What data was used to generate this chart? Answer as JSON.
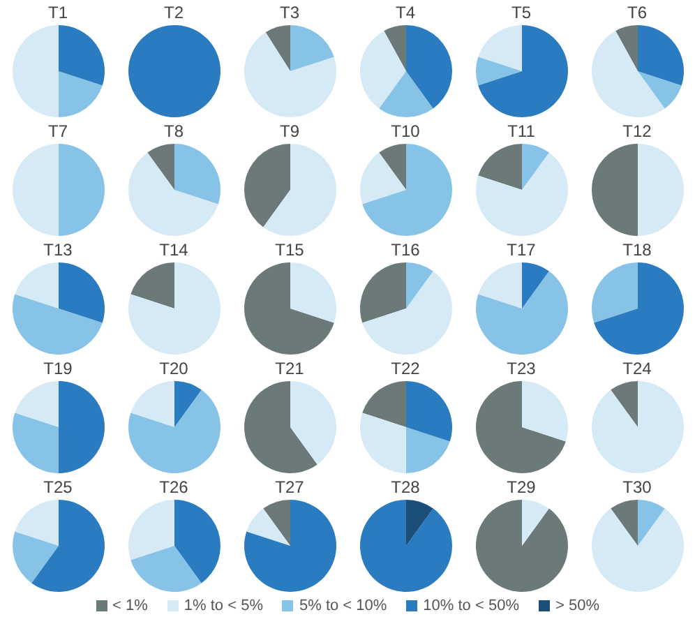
{
  "chart_data": [
    {
      "type": "pie",
      "title": "T1",
      "categories": [
        "< 1%",
        "1% to < 5%",
        "5% to < 10%",
        "10% to < 50%",
        "> 50%"
      ],
      "values": [
        0,
        50,
        20,
        30,
        0
      ],
      "colors": [
        "#6b7a78",
        "#d6eaf6",
        "#86c3e6",
        "#2a7bc0",
        "#1b4f7a"
      ],
      "legend": "bottom"
    },
    {
      "type": "pie",
      "title": "T2",
      "categories": [
        null,
        null,
        null,
        null,
        null
      ],
      "values": [
        0,
        0,
        0,
        100,
        0
      ],
      "colors": [
        "#6b7a78",
        "#d6eaf6",
        "#86c3e6",
        "#2a7bc0",
        "#1b4f7a"
      ]
    },
    {
      "type": "pie",
      "title": "T3",
      "categories": [
        null,
        null,
        null,
        null,
        null
      ],
      "values": [
        9,
        71,
        20,
        0,
        0
      ],
      "colors": [
        "#6b7a78",
        "#d6eaf6",
        "#86c3e6",
        "#2a7bc0",
        "#1b4f7a"
      ]
    },
    {
      "type": "pie",
      "title": "T4",
      "categories": [
        null,
        null,
        null,
        null,
        null
      ],
      "values": [
        8,
        32,
        20,
        40,
        0
      ],
      "colors": [
        "#6b7a78",
        "#d6eaf6",
        "#86c3e6",
        "#2a7bc0",
        "#1b4f7a"
      ]
    },
    {
      "type": "pie",
      "title": "T5",
      "categories": [
        null,
        null,
        null,
        null,
        null
      ],
      "values": [
        0,
        20,
        10,
        70,
        0
      ],
      "colors": [
        "#6b7a78",
        "#d6eaf6",
        "#86c3e6",
        "#2a7bc0",
        "#1b4f7a"
      ]
    },
    {
      "type": "pie",
      "title": "T6",
      "categories": [
        null,
        null,
        null,
        null,
        null
      ],
      "values": [
        8,
        52,
        10,
        30,
        0
      ],
      "colors": [
        "#6b7a78",
        "#d6eaf6",
        "#86c3e6",
        "#2a7bc0",
        "#1b4f7a"
      ]
    },
    {
      "type": "pie",
      "title": "T7",
      "categories": [
        null,
        null,
        null,
        null,
        null
      ],
      "values": [
        0,
        50,
        50,
        0,
        0
      ],
      "colors": [
        "#6b7a78",
        "#d6eaf6",
        "#86c3e6",
        "#2a7bc0",
        "#1b4f7a"
      ]
    },
    {
      "type": "pie",
      "title": "T8",
      "categories": [
        null,
        null,
        null,
        null,
        null
      ],
      "values": [
        10,
        60,
        30,
        0,
        0
      ],
      "colors": [
        "#6b7a78",
        "#d6eaf6",
        "#86c3e6",
        "#2a7bc0",
        "#1b4f7a"
      ]
    },
    {
      "type": "pie",
      "title": "T9",
      "categories": [
        null,
        null,
        null,
        null,
        null
      ],
      "values": [
        40,
        60,
        0,
        0,
        0
      ],
      "colors": [
        "#6b7a78",
        "#d6eaf6",
        "#86c3e6",
        "#2a7bc0",
        "#1b4f7a"
      ]
    },
    {
      "type": "pie",
      "title": "T10",
      "categories": [
        null,
        null,
        null,
        null,
        null
      ],
      "values": [
        10,
        20,
        70,
        0,
        0
      ],
      "colors": [
        "#6b7a78",
        "#d6eaf6",
        "#86c3e6",
        "#2a7bc0",
        "#1b4f7a"
      ]
    },
    {
      "type": "pie",
      "title": "T11",
      "categories": [
        null,
        null,
        null,
        null,
        null
      ],
      "values": [
        20,
        70,
        10,
        0,
        0
      ],
      "colors": [
        "#6b7a78",
        "#d6eaf6",
        "#86c3e6",
        "#2a7bc0",
        "#1b4f7a"
      ]
    },
    {
      "type": "pie",
      "title": "T12",
      "categories": [
        null,
        null,
        null,
        null,
        null
      ],
      "values": [
        50,
        50,
        0,
        0,
        0
      ],
      "colors": [
        "#6b7a78",
        "#d6eaf6",
        "#86c3e6",
        "#2a7bc0",
        "#1b4f7a"
      ]
    },
    {
      "type": "pie",
      "title": "T13",
      "categories": [
        null,
        null,
        null,
        null,
        null
      ],
      "values": [
        0,
        20,
        50,
        30,
        0
      ],
      "colors": [
        "#6b7a78",
        "#d6eaf6",
        "#86c3e6",
        "#2a7bc0",
        "#1b4f7a"
      ]
    },
    {
      "type": "pie",
      "title": "T14",
      "categories": [
        null,
        null,
        null,
        null,
        null
      ],
      "values": [
        20,
        80,
        0,
        0,
        0
      ],
      "colors": [
        "#6b7a78",
        "#d6eaf6",
        "#86c3e6",
        "#2a7bc0",
        "#1b4f7a"
      ]
    },
    {
      "type": "pie",
      "title": "T15",
      "categories": [
        null,
        null,
        null,
        null,
        null
      ],
      "values": [
        70,
        30,
        0,
        0,
        0
      ],
      "colors": [
        "#6b7a78",
        "#d6eaf6",
        "#86c3e6",
        "#2a7bc0",
        "#1b4f7a"
      ]
    },
    {
      "type": "pie",
      "title": "T16",
      "categories": [
        null,
        null,
        null,
        null,
        null
      ],
      "values": [
        30,
        60,
        10,
        0,
        0
      ],
      "colors": [
        "#6b7a78",
        "#d6eaf6",
        "#86c3e6",
        "#2a7bc0",
        "#1b4f7a"
      ]
    },
    {
      "type": "pie",
      "title": "T17",
      "categories": [
        null,
        null,
        null,
        null,
        null
      ],
      "values": [
        0,
        20,
        70,
        10,
        0
      ],
      "colors": [
        "#6b7a78",
        "#d6eaf6",
        "#86c3e6",
        "#2a7bc0",
        "#1b4f7a"
      ]
    },
    {
      "type": "pie",
      "title": "T18",
      "categories": [
        null,
        null,
        null,
        null,
        null
      ],
      "values": [
        0,
        0,
        30,
        70,
        0
      ],
      "colors": [
        "#6b7a78",
        "#d6eaf6",
        "#86c3e6",
        "#2a7bc0",
        "#1b4f7a"
      ]
    },
    {
      "type": "pie",
      "title": "T19",
      "categories": [
        null,
        null,
        null,
        null,
        null
      ],
      "values": [
        0,
        20,
        30,
        50,
        0
      ],
      "colors": [
        "#6b7a78",
        "#d6eaf6",
        "#86c3e6",
        "#2a7bc0",
        "#1b4f7a"
      ]
    },
    {
      "type": "pie",
      "title": "T20",
      "categories": [
        null,
        null,
        null,
        null,
        null
      ],
      "values": [
        0,
        20,
        70,
        10,
        0
      ],
      "colors": [
        "#6b7a78",
        "#d6eaf6",
        "#86c3e6",
        "#2a7bc0",
        "#1b4f7a"
      ]
    },
    {
      "type": "pie",
      "title": "T21",
      "categories": [
        null,
        null,
        null,
        null,
        null
      ],
      "values": [
        60,
        40,
        0,
        0,
        0
      ],
      "colors": [
        "#6b7a78",
        "#d6eaf6",
        "#86c3e6",
        "#2a7bc0",
        "#1b4f7a"
      ]
    },
    {
      "type": "pie",
      "title": "T22",
      "categories": [
        null,
        null,
        null,
        null,
        null
      ],
      "values": [
        20,
        30,
        20,
        30,
        0
      ],
      "colors": [
        "#6b7a78",
        "#d6eaf6",
        "#86c3e6",
        "#2a7bc0",
        "#1b4f7a"
      ]
    },
    {
      "type": "pie",
      "title": "T23",
      "categories": [
        null,
        null,
        null,
        null,
        null
      ],
      "values": [
        70,
        30,
        0,
        0,
        0
      ],
      "colors": [
        "#6b7a78",
        "#d6eaf6",
        "#86c3e6",
        "#2a7bc0",
        "#1b4f7a"
      ]
    },
    {
      "type": "pie",
      "title": "T24",
      "categories": [
        null,
        null,
        null,
        null,
        null
      ],
      "values": [
        10,
        90,
        0,
        0,
        0
      ],
      "colors": [
        "#6b7a78",
        "#d6eaf6",
        "#86c3e6",
        "#2a7bc0",
        "#1b4f7a"
      ]
    },
    {
      "type": "pie",
      "title": "T25",
      "categories": [
        null,
        null,
        null,
        null,
        null
      ],
      "values": [
        0,
        20,
        20,
        60,
        0
      ],
      "colors": [
        "#6b7a78",
        "#d6eaf6",
        "#86c3e6",
        "#2a7bc0",
        "#1b4f7a"
      ]
    },
    {
      "type": "pie",
      "title": "T26",
      "categories": [
        null,
        null,
        null,
        null,
        null
      ],
      "values": [
        0,
        30,
        30,
        40,
        0
      ],
      "colors": [
        "#6b7a78",
        "#d6eaf6",
        "#86c3e6",
        "#2a7bc0",
        "#1b4f7a"
      ]
    },
    {
      "type": "pie",
      "title": "T27",
      "categories": [
        null,
        null,
        null,
        null,
        null
      ],
      "values": [
        10,
        10,
        0,
        80,
        0
      ],
      "colors": [
        "#6b7a78",
        "#d6eaf6",
        "#86c3e6",
        "#2a7bc0",
        "#1b4f7a"
      ]
    },
    {
      "type": "pie",
      "title": "T28",
      "categories": [
        null,
        null,
        null,
        null,
        null
      ],
      "values": [
        0,
        0,
        0,
        90,
        10
      ],
      "colors": [
        "#6b7a78",
        "#d6eaf6",
        "#86c3e6",
        "#2a7bc0",
        "#1b4f7a"
      ]
    },
    {
      "type": "pie",
      "title": "T29",
      "categories": [
        null,
        null,
        null,
        null,
        null
      ],
      "values": [
        90,
        10,
        0,
        0,
        0
      ],
      "colors": [
        "#6b7a78",
        "#d6eaf6",
        "#86c3e6",
        "#2a7bc0",
        "#1b4f7a"
      ]
    },
    {
      "type": "pie",
      "title": "T30",
      "categories": [
        null,
        null,
        null,
        null,
        null
      ],
      "values": [
        10,
        80,
        10,
        0,
        0
      ],
      "colors": [
        "#6b7a78",
        "#d6eaf6",
        "#86c3e6",
        "#2a7bc0",
        "#1b4f7a"
      ]
    }
  ]
}
